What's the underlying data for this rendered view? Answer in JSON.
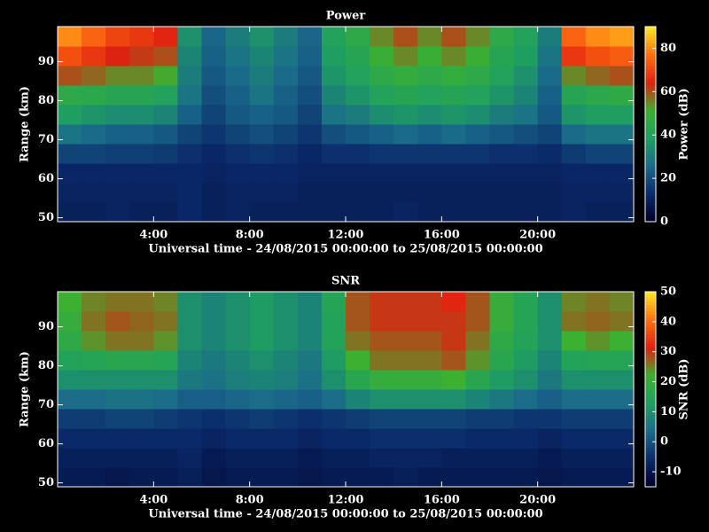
{
  "chart_data": [
    {
      "type": "heatmap",
      "title": "Power",
      "xlabel": "Universal time - 24/08/2015 00:00:00 to 25/08/2015 00:00:00",
      "ylabel": "Range (km)",
      "colorbar_label": "Power (dB)",
      "x_edges": [
        0,
        1,
        2,
        3,
        4,
        5,
        6,
        7,
        8,
        9,
        10,
        11,
        12,
        13,
        14,
        15,
        16,
        17,
        18,
        19,
        20,
        21,
        22,
        23,
        24
      ],
      "y_edges": [
        49,
        54,
        59,
        64,
        69,
        74,
        79,
        84,
        89,
        94,
        99
      ],
      "values": [
        [
          10,
          10,
          11,
          10,
          10,
          12,
          10,
          11,
          10,
          10,
          10,
          10,
          10,
          10,
          11,
          10,
          10,
          10,
          10,
          10,
          10,
          11,
          10,
          10
        ],
        [
          11,
          11,
          11,
          11,
          11,
          12,
          10,
          11,
          11,
          11,
          10,
          10,
          10,
          10,
          10,
          10,
          10,
          10,
          10,
          10,
          10,
          11,
          11,
          11
        ],
        [
          12,
          12,
          12,
          12,
          12,
          12,
          11,
          12,
          12,
          12,
          11,
          11,
          11,
          11,
          11,
          11,
          11,
          11,
          11,
          11,
          11,
          12,
          12,
          12
        ],
        [
          18,
          18,
          17,
          17,
          16,
          14,
          12,
          14,
          15,
          14,
          12,
          14,
          14,
          15,
          15,
          15,
          15,
          15,
          14,
          14,
          13,
          16,
          18,
          18
        ],
        [
          28,
          26,
          24,
          24,
          22,
          18,
          15,
          18,
          20,
          18,
          15,
          20,
          22,
          24,
          26,
          24,
          26,
          24,
          22,
          20,
          18,
          26,
          28,
          28
        ],
        [
          38,
          36,
          34,
          34,
          32,
          24,
          18,
          22,
          24,
          22,
          18,
          28,
          30,
          34,
          36,
          34,
          36,
          34,
          30,
          28,
          22,
          36,
          38,
          38
        ],
        [
          45,
          44,
          42,
          42,
          40,
          28,
          20,
          24,
          28,
          24,
          20,
          32,
          36,
          40,
          42,
          40,
          42,
          40,
          36,
          32,
          24,
          42,
          44,
          46
        ],
        [
          60,
          58,
          55,
          55,
          52,
          30,
          22,
          26,
          30,
          26,
          22,
          36,
          40,
          45,
          48,
          45,
          48,
          45,
          40,
          35,
          26,
          55,
          58,
          60
        ],
        [
          72,
          68,
          64,
          62,
          60,
          32,
          24,
          28,
          32,
          28,
          24,
          38,
          42,
          50,
          55,
          50,
          55,
          50,
          42,
          38,
          28,
          68,
          72,
          74
        ],
        [
          80,
          75,
          70,
          68,
          65,
          35,
          25,
          30,
          35,
          30,
          25,
          40,
          45,
          55,
          60,
          55,
          60,
          55,
          45,
          40,
          30,
          75,
          80,
          82
        ]
      ],
      "xlim": [
        0,
        24
      ],
      "ylim": [
        49,
        99
      ],
      "xticks": [
        {
          "value": 4,
          "label": "4:00"
        },
        {
          "value": 8,
          "label": "8:00"
        },
        {
          "value": 12,
          "label": "12:00"
        },
        {
          "value": 16,
          "label": "16:00"
        },
        {
          "value": 20,
          "label": "20:00"
        }
      ],
      "yticks": [
        50,
        60,
        70,
        80,
        90
      ],
      "zlim": [
        0,
        90
      ],
      "zticks": [
        0,
        20,
        40,
        60,
        80
      ],
      "colors": [
        "#000028",
        "#0a2a6a",
        "#1a6a8a",
        "#1fa060",
        "#3cb030",
        "#e02010",
        "#ff7010",
        "#ffe820"
      ]
    },
    {
      "type": "heatmap",
      "title": "SNR",
      "xlabel": "Universal time - 24/08/2015 00:00:00 to 25/08/2015 00:00:00",
      "ylabel": "Range (km)",
      "colorbar_label": "SNR (dB)",
      "x_edges": [
        0,
        1,
        2,
        3,
        4,
        5,
        6,
        7,
        8,
        9,
        10,
        11,
        12,
        13,
        14,
        15,
        16,
        17,
        18,
        19,
        20,
        21,
        22,
        23,
        24
      ],
      "y_edges": [
        49,
        54,
        59,
        64,
        69,
        74,
        79,
        84,
        89,
        94,
        99
      ],
      "values": [
        [
          -9,
          -9,
          -10,
          -9,
          -9,
          -8,
          -10,
          -9,
          -9,
          -9,
          -10,
          -9,
          -9,
          -9,
          -8,
          -9,
          -9,
          -9,
          -9,
          -9,
          -10,
          -9,
          -9,
          -9
        ],
        [
          -8,
          -8,
          -8,
          -8,
          -8,
          -7,
          -9,
          -8,
          -8,
          -8,
          -9,
          -8,
          -8,
          -7,
          -7,
          -7,
          -8,
          -8,
          -8,
          -8,
          -9,
          -8,
          -8,
          -8
        ],
        [
          -6,
          -6,
          -6,
          -6,
          -6,
          -6,
          -7,
          -6,
          -6,
          -6,
          -7,
          -6,
          -6,
          -5,
          -5,
          -5,
          -5,
          -6,
          -6,
          -6,
          -7,
          -6,
          -6,
          -6
        ],
        [
          -3,
          -3,
          -2,
          -2,
          -3,
          -4,
          -5,
          -4,
          -3,
          -4,
          -5,
          -4,
          -3,
          -2,
          -2,
          -2,
          -2,
          -3,
          -3,
          -4,
          -4,
          -3,
          -3,
          -3
        ],
        [
          4,
          4,
          5,
          5,
          4,
          2,
          2,
          3,
          4,
          3,
          2,
          4,
          8,
          10,
          10,
          10,
          10,
          8,
          6,
          4,
          2,
          4,
          4,
          4
        ],
        [
          10,
          10,
          10,
          10,
          10,
          6,
          5,
          7,
          8,
          7,
          5,
          10,
          16,
          20,
          20,
          20,
          22,
          16,
          12,
          10,
          6,
          10,
          10,
          10
        ],
        [
          14,
          15,
          16,
          16,
          15,
          8,
          6,
          8,
          10,
          8,
          6,
          12,
          22,
          26,
          26,
          26,
          28,
          24,
          16,
          12,
          8,
          14,
          15,
          15
        ],
        [
          18,
          24,
          26,
          26,
          24,
          10,
          8,
          10,
          12,
          10,
          8,
          14,
          26,
          28,
          28,
          28,
          30,
          26,
          18,
          14,
          10,
          22,
          24,
          22
        ],
        [
          20,
          26,
          28,
          27,
          26,
          10,
          8,
          10,
          12,
          10,
          8,
          14,
          28,
          30,
          30,
          30,
          30,
          28,
          20,
          15,
          10,
          26,
          27,
          26
        ],
        [
          22,
          25,
          26,
          26,
          25,
          10,
          8,
          10,
          12,
          10,
          8,
          15,
          28,
          30,
          30,
          30,
          32,
          28,
          20,
          15,
          10,
          25,
          26,
          25
        ]
      ],
      "xlim": [
        0,
        24
      ],
      "ylim": [
        49,
        99
      ],
      "xticks": [
        {
          "value": 4,
          "label": "4:00"
        },
        {
          "value": 8,
          "label": "8:00"
        },
        {
          "value": 12,
          "label": "12:00"
        },
        {
          "value": 16,
          "label": "16:00"
        },
        {
          "value": 20,
          "label": "20:00"
        }
      ],
      "yticks": [
        50,
        60,
        70,
        80,
        90
      ],
      "zlim": [
        -15,
        50
      ],
      "zticks": [
        -10,
        0,
        10,
        20,
        30,
        40,
        50
      ],
      "colors": [
        "#000028",
        "#0a2a6a",
        "#1a6a8a",
        "#1fa060",
        "#3cb030",
        "#e02010",
        "#ff7010",
        "#ffe820"
      ]
    }
  ]
}
